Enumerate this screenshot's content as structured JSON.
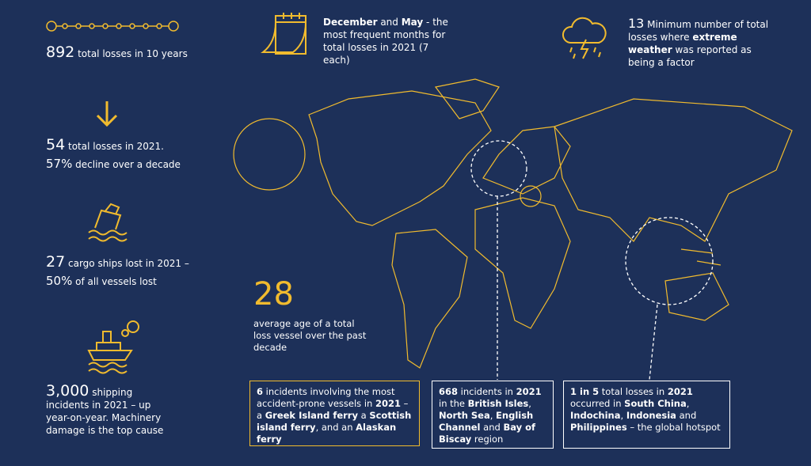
{
  "colors": {
    "background": "#1d3059",
    "accent": "#f1bb2e",
    "text": "#ffffff"
  },
  "stats": {
    "decade": {
      "number": "892",
      "text": " total losses in 10 years",
      "icon": "timeline-icon"
    },
    "losses2021": {
      "number": "54",
      "text": " total losses in 2021.",
      "pct": "57%",
      "pct_text": " decline over a decade",
      "icon": "arrow-down-icon"
    },
    "cargo": {
      "number": "27",
      "text": " cargo ships lost in 2021 –",
      "pct": "50%",
      "pct_text": " of all vessels lost",
      "icon": "sinking-ship-icon"
    },
    "incidents": {
      "number": "3,000",
      "text": " shipping incidents in 2021 – up year-on-year. Machinery damage is the top cause",
      "icon": "ship-icon"
    },
    "months": {
      "icon": "calendar-icon",
      "rich": [
        {
          "t": "December",
          "b": true
        },
        {
          "t": " and "
        },
        {
          "t": "May",
          "b": true
        },
        {
          "t": " - the most frequent months for total losses in 2021 (7 each)"
        }
      ]
    },
    "weather": {
      "number": "13",
      "icon": "storm-cloud-icon",
      "rich": [
        {
          "t": " Minimum number of total losses where "
        },
        {
          "t": "extreme weather",
          "b": true
        },
        {
          "t": " was reported as being a factor"
        }
      ]
    },
    "age": {
      "number": "28",
      "text": "average age of a total loss vessel over the past decade"
    }
  },
  "boxes": [
    {
      "rich": [
        {
          "t": "6",
          "b": true
        },
        {
          "t": " incidents involving the most accident-prone vessels in "
        },
        {
          "t": "2021",
          "b": true
        },
        {
          "t": " – a "
        },
        {
          "t": "Greek Island ferry",
          "b": true
        },
        {
          "t": " a "
        },
        {
          "t": "Scottish island ferry",
          "b": true
        },
        {
          "t": ", and an "
        },
        {
          "t": "Alaskan ferry",
          "b": true
        }
      ]
    },
    {
      "rich": [
        {
          "t": "668",
          "b": true
        },
        {
          "t": " incidents in "
        },
        {
          "t": "2021",
          "b": true
        },
        {
          "t": " in the "
        },
        {
          "t": "British Isles",
          "b": true
        },
        {
          "t": ", "
        },
        {
          "t": "North Sea",
          "b": true
        },
        {
          "t": ", "
        },
        {
          "t": "English Channel",
          "b": true
        },
        {
          "t": " and "
        },
        {
          "t": "Bay of Biscay",
          "b": true
        },
        {
          "t": " region"
        }
      ]
    },
    {
      "rich": [
        {
          "t": "1 in 5",
          "b": true
        },
        {
          "t": " total losses in "
        },
        {
          "t": "2021",
          "b": true
        },
        {
          "t": " occurred in "
        },
        {
          "t": "South China",
          "b": true
        },
        {
          "t": ", "
        },
        {
          "t": "Indochina",
          "b": true
        },
        {
          "t": ", "
        },
        {
          "t": "Indonesia",
          "b": true
        },
        {
          "t": " and "
        },
        {
          "t": "Philippines",
          "b": true
        },
        {
          "t": " – the global hotspot"
        }
      ]
    }
  ]
}
